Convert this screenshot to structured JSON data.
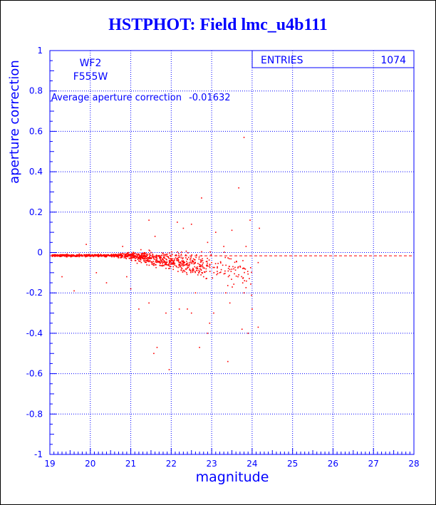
{
  "title": "HSTPHOT: Field lmc_u4b111",
  "info": {
    "camera": "WF2",
    "filter": "F555W",
    "average_label": "Average aperture correction",
    "average_value": "-0.01632",
    "entries_label": "ENTRIES",
    "entries_value": "1074"
  },
  "chart_data": {
    "type": "scatter",
    "xlabel": "magnitude",
    "ylabel": "aperture correction",
    "xlim": [
      19,
      28
    ],
    "ylim": [
      -1,
      1
    ],
    "xticks": [
      "19",
      "20",
      "21",
      "22",
      "23",
      "24",
      "25",
      "26",
      "27",
      "28"
    ],
    "yticks": [
      "-1",
      "-0.8",
      "-0.6",
      "-0.4",
      "-0.2",
      "0",
      "0.2",
      "0.4",
      "0.6",
      "0.8",
      "1"
    ],
    "grid": true,
    "average_line": -0.01632,
    "colors": {
      "axis": "#0000ff",
      "points": "#ff0000",
      "grid": "#0000ff"
    },
    "points": [
      [
        23.8,
        0.57
      ],
      [
        23.67,
        0.32
      ],
      [
        22.75,
        0.27
      ],
      [
        24.18,
        0.12
      ],
      [
        23.95,
        0.16
      ],
      [
        21.45,
        0.16
      ],
      [
        22.15,
        0.15
      ],
      [
        22.5,
        0.14
      ],
      [
        23.5,
        0.11
      ],
      [
        22.3,
        0.12
      ],
      [
        23.1,
        0.1
      ],
      [
        21.6,
        0.08
      ],
      [
        22.9,
        0.05
      ],
      [
        23.3,
        0.03
      ],
      [
        23.85,
        0.03
      ],
      [
        23.2,
        -0.1
      ],
      [
        23.65,
        -0.12
      ],
      [
        23.8,
        -0.2
      ],
      [
        24.0,
        -0.28
      ],
      [
        23.35,
        -0.2
      ],
      [
        23.45,
        -0.25
      ],
      [
        23.05,
        -0.3
      ],
      [
        22.95,
        -0.35
      ],
      [
        22.9,
        -0.4
      ],
      [
        23.9,
        -0.4
      ],
      [
        24.15,
        -0.37
      ],
      [
        23.75,
        -0.38
      ],
      [
        22.7,
        -0.47
      ],
      [
        21.65,
        -0.47
      ],
      [
        21.57,
        -0.5
      ],
      [
        23.4,
        -0.54
      ],
      [
        21.95,
        -0.58
      ],
      [
        24.15,
        -0.05
      ],
      [
        23.0,
        -0.05
      ],
      [
        22.4,
        -0.28
      ],
      [
        21.2,
        -0.28
      ],
      [
        21.45,
        -0.25
      ],
      [
        21.87,
        -0.3
      ],
      [
        22.5,
        -0.3
      ],
      [
        22.2,
        -0.28
      ],
      [
        19.6,
        -0.19
      ],
      [
        19.3,
        -0.12
      ],
      [
        20.15,
        -0.1
      ],
      [
        20.4,
        -0.15
      ],
      [
        20.9,
        -0.12
      ],
      [
        21.0,
        -0.18
      ],
      [
        20.8,
        0.03
      ],
      [
        19.9,
        0.04
      ],
      [
        22.6,
        -0.2
      ],
      [
        22.8,
        -0.12
      ]
    ]
  }
}
